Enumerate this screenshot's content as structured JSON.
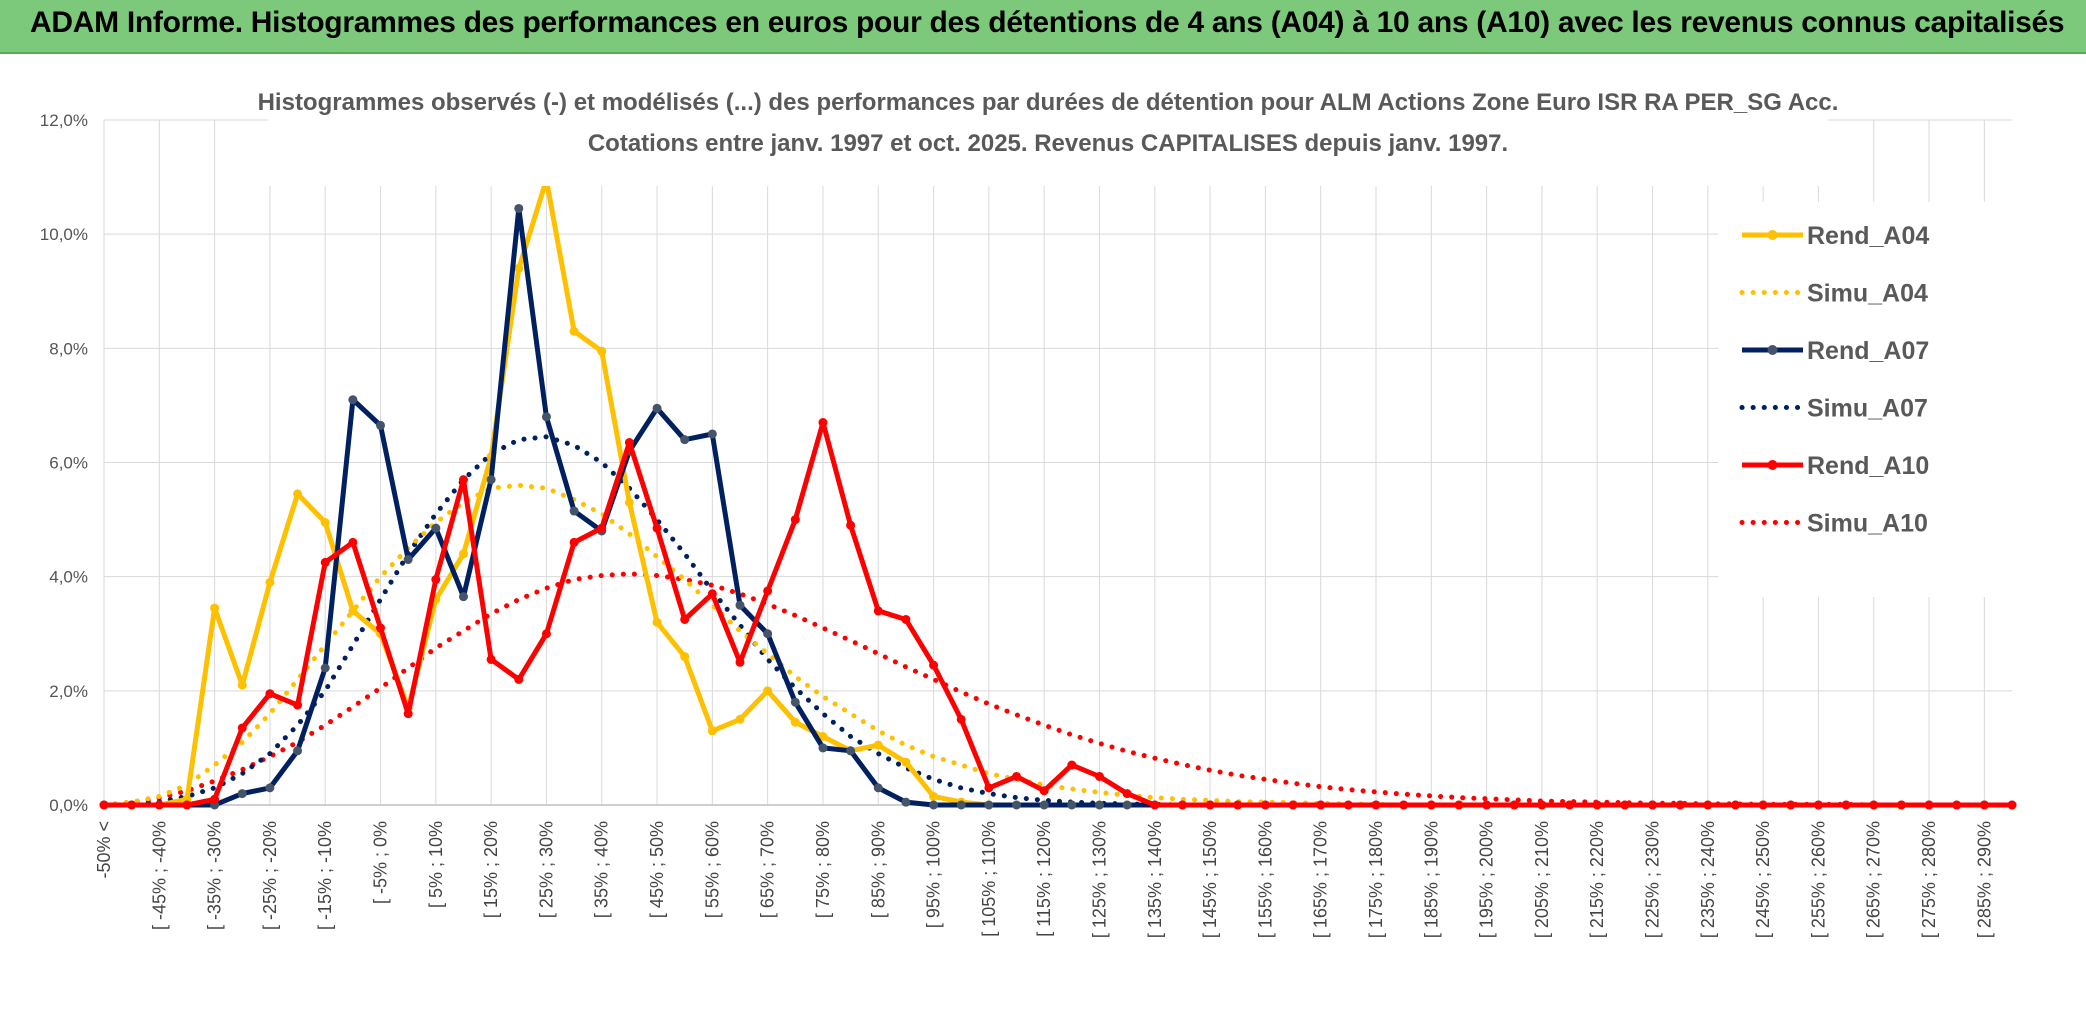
{
  "header": {
    "title": "ADAM Informe. Histogrammes des performances en euros pour des détentions de 4 ans (A04) à 10 ans (A10) avec les revenus connus capitalisés"
  },
  "chart_data": {
    "type": "line",
    "title": "Histogrammes observés (-) et modélisés (...) des performances par durées de détention pour ALM Actions Zone Euro ISR RA PER_SG Acc.",
    "subtitle": "Cotations entre janv. 1997 et oct. 2025. Revenus CAPITALISES depuis janv. 1997.",
    "xlabel": "",
    "ylabel": "",
    "ylim": [
      0,
      12
    ],
    "y_ticks": [
      "0,0%",
      "2,0%",
      "4,0%",
      "6,0%",
      "8,0%",
      "10,0%",
      "12,0%"
    ],
    "x_tick_labels": [
      "-50% <",
      "[ -45% ; -40%",
      "[ -35% ; -30%",
      "[ -25% ; -20%",
      "[ -15% ; -10%",
      "[ -5% ; 0%",
      "[ 5% ; 10%",
      "[ 15% ; 20%",
      "[ 25% ; 30%",
      "[ 35% ; 40%",
      "[ 45% ; 50%",
      "[ 55% ; 60%",
      "[ 65% ; 70%",
      "[ 75% ; 80%",
      "[ 85% ; 90%",
      "[ 95% ; 100%",
      "[ 105% ; 110%",
      "[ 115% ; 120%",
      "[ 125% ; 130%",
      "[ 135% ; 140%",
      "[ 145% ; 150%",
      "[ 155% ; 160%",
      "[ 165% ; 170%",
      "[ 175% ; 180%",
      "[ 185% ; 190%",
      "[ 195% ; 200%",
      "[ 205% ; 210%",
      "[ 215% ; 220%",
      "[ 225% ; 230%",
      "[ 235% ; 240%",
      "[ 245% ; 250%",
      "[ 255% ; 260%",
      "[ 265% ; 270%",
      "[ 275% ; 280%",
      "[ 285% ; 290%"
    ],
    "grid": true,
    "legend_position": "top-right",
    "series": [
      {
        "name": "Rend_A04",
        "style": "solid",
        "color": "#FFC000",
        "values": [
          0.0,
          0.0,
          0.0,
          0.1,
          3.45,
          2.1,
          3.9,
          5.45,
          4.95,
          3.4,
          3.0,
          1.7,
          3.6,
          4.4,
          6.1,
          9.4,
          10.95,
          8.3,
          7.95,
          5.3,
          3.2,
          2.6,
          1.3,
          1.5,
          2.0,
          1.45,
          1.2,
          0.95,
          1.05,
          0.75,
          0.15,
          0.05,
          0.0,
          0.0,
          0.0,
          0.0,
          0.0,
          0.0,
          0.0,
          0.0,
          0.0,
          0.0,
          0.0,
          0.0,
          0.0,
          0.0,
          0.0,
          0.0,
          0.0,
          0.0,
          0.0,
          0.0,
          0.0,
          0.0,
          0.0,
          0.0,
          0.0,
          0.0,
          0.0,
          0.0,
          0.0,
          0.0,
          0.0,
          0.0,
          0.0,
          0.0,
          0.0,
          0.0,
          0.0,
          0.0
        ]
      },
      {
        "name": "Simu_A04",
        "style": "dotted",
        "color": "#FFC000",
        "values": [
          0.0,
          0.05,
          0.15,
          0.35,
          0.7,
          1.1,
          1.6,
          2.2,
          2.8,
          3.4,
          4.0,
          4.5,
          4.95,
          5.3,
          5.55,
          5.6,
          5.55,
          5.35,
          5.1,
          4.75,
          4.35,
          3.95,
          3.5,
          3.05,
          2.65,
          2.25,
          1.9,
          1.6,
          1.3,
          1.05,
          0.85,
          0.7,
          0.55,
          0.45,
          0.35,
          0.28,
          0.22,
          0.17,
          0.13,
          0.1,
          0.08,
          0.06,
          0.05,
          0.04,
          0.03,
          0.02,
          0.01,
          0.0,
          0.0,
          0.0,
          0.0,
          0.0,
          0.0,
          0.0,
          0.0,
          0.0,
          0.0,
          0.0,
          0.0,
          0.0,
          0.0,
          0.0,
          0.0,
          0.0,
          0.0,
          0.0,
          0.0,
          0.0,
          0.0,
          0.0
        ]
      },
      {
        "name": "Rend_A07",
        "style": "solid",
        "color": "#002060",
        "values": [
          0.0,
          0.0,
          0.0,
          0.0,
          0.0,
          0.2,
          0.3,
          0.95,
          2.4,
          7.1,
          6.65,
          4.3,
          4.85,
          3.65,
          5.7,
          10.45,
          6.8,
          5.15,
          4.8,
          6.2,
          6.95,
          6.4,
          6.5,
          3.5,
          3.0,
          1.8,
          1.0,
          0.95,
          0.3,
          0.05,
          0.0,
          0.0,
          0.0,
          0.0,
          0.0,
          0.0,
          0.0,
          0.0,
          0.0,
          0.0,
          0.0,
          0.0,
          0.0,
          0.0,
          0.0,
          0.0,
          0.0,
          0.0,
          0.0,
          0.0,
          0.0,
          0.0,
          0.0,
          0.0,
          0.0,
          0.0,
          0.0,
          0.0,
          0.0,
          0.0,
          0.0,
          0.0,
          0.0,
          0.0,
          0.0,
          0.0,
          0.0,
          0.0,
          0.0,
          0.0
        ]
      },
      {
        "name": "Simu_A07",
        "style": "dotted",
        "color": "#002060",
        "values": [
          0.0,
          0.02,
          0.06,
          0.15,
          0.3,
          0.55,
          0.9,
          1.4,
          2.0,
          2.8,
          3.6,
          4.4,
          5.1,
          5.7,
          6.15,
          6.4,
          6.45,
          6.3,
          6.0,
          5.55,
          5.0,
          4.4,
          3.75,
          3.15,
          2.55,
          2.05,
          1.6,
          1.2,
          0.9,
          0.65,
          0.45,
          0.3,
          0.2,
          0.13,
          0.08,
          0.05,
          0.03,
          0.02,
          0.01,
          0.0,
          0.0,
          0.0,
          0.0,
          0.0,
          0.0,
          0.0,
          0.0,
          0.0,
          0.0,
          0.0,
          0.0,
          0.0,
          0.0,
          0.0,
          0.0,
          0.0,
          0.0,
          0.0,
          0.0,
          0.0,
          0.0,
          0.0,
          0.0,
          0.0,
          0.0,
          0.0,
          0.0,
          0.0,
          0.0,
          0.0
        ]
      },
      {
        "name": "Rend_A10",
        "style": "solid",
        "color": "#FF0000",
        "values": [
          0.0,
          0.0,
          0.0,
          0.0,
          0.1,
          1.35,
          1.95,
          1.75,
          4.25,
          4.6,
          3.1,
          1.6,
          3.95,
          5.7,
          2.55,
          2.2,
          3.0,
          4.6,
          4.85,
          6.35,
          4.85,
          3.25,
          3.7,
          2.5,
          3.75,
          5.0,
          6.7,
          4.9,
          3.4,
          3.25,
          2.45,
          1.5,
          0.3,
          0.5,
          0.25,
          0.7,
          0.5,
          0.2,
          0.0,
          0.0,
          0.0,
          0.0,
          0.0,
          0.0,
          0.0,
          0.0,
          0.0,
          0.0,
          0.0,
          0.0,
          0.0,
          0.0,
          0.0,
          0.0,
          0.0,
          0.0,
          0.0,
          0.0,
          0.0,
          0.0,
          0.0,
          0.0,
          0.0,
          0.0,
          0.0,
          0.0,
          0.0,
          0.0,
          0.0,
          0.0
        ]
      },
      {
        "name": "Simu_A10",
        "style": "dotted",
        "color": "#FF0000",
        "values": [
          0.0,
          0.05,
          0.12,
          0.25,
          0.42,
          0.62,
          0.85,
          1.1,
          1.4,
          1.72,
          2.05,
          2.4,
          2.75,
          3.05,
          3.35,
          3.6,
          3.8,
          3.95,
          4.02,
          4.05,
          4.02,
          3.95,
          3.85,
          3.7,
          3.52,
          3.32,
          3.1,
          2.88,
          2.65,
          2.42,
          2.2,
          1.98,
          1.77,
          1.58,
          1.4,
          1.23,
          1.08,
          0.94,
          0.82,
          0.71,
          0.61,
          0.52,
          0.45,
          0.38,
          0.32,
          0.27,
          0.23,
          0.19,
          0.16,
          0.13,
          0.11,
          0.09,
          0.07,
          0.06,
          0.05,
          0.04,
          0.03,
          0.03,
          0.02,
          0.02,
          0.01,
          0.01,
          0.01,
          0.01,
          0.0,
          0.0,
          0.0,
          0.0,
          0.0,
          0.0
        ]
      }
    ]
  }
}
